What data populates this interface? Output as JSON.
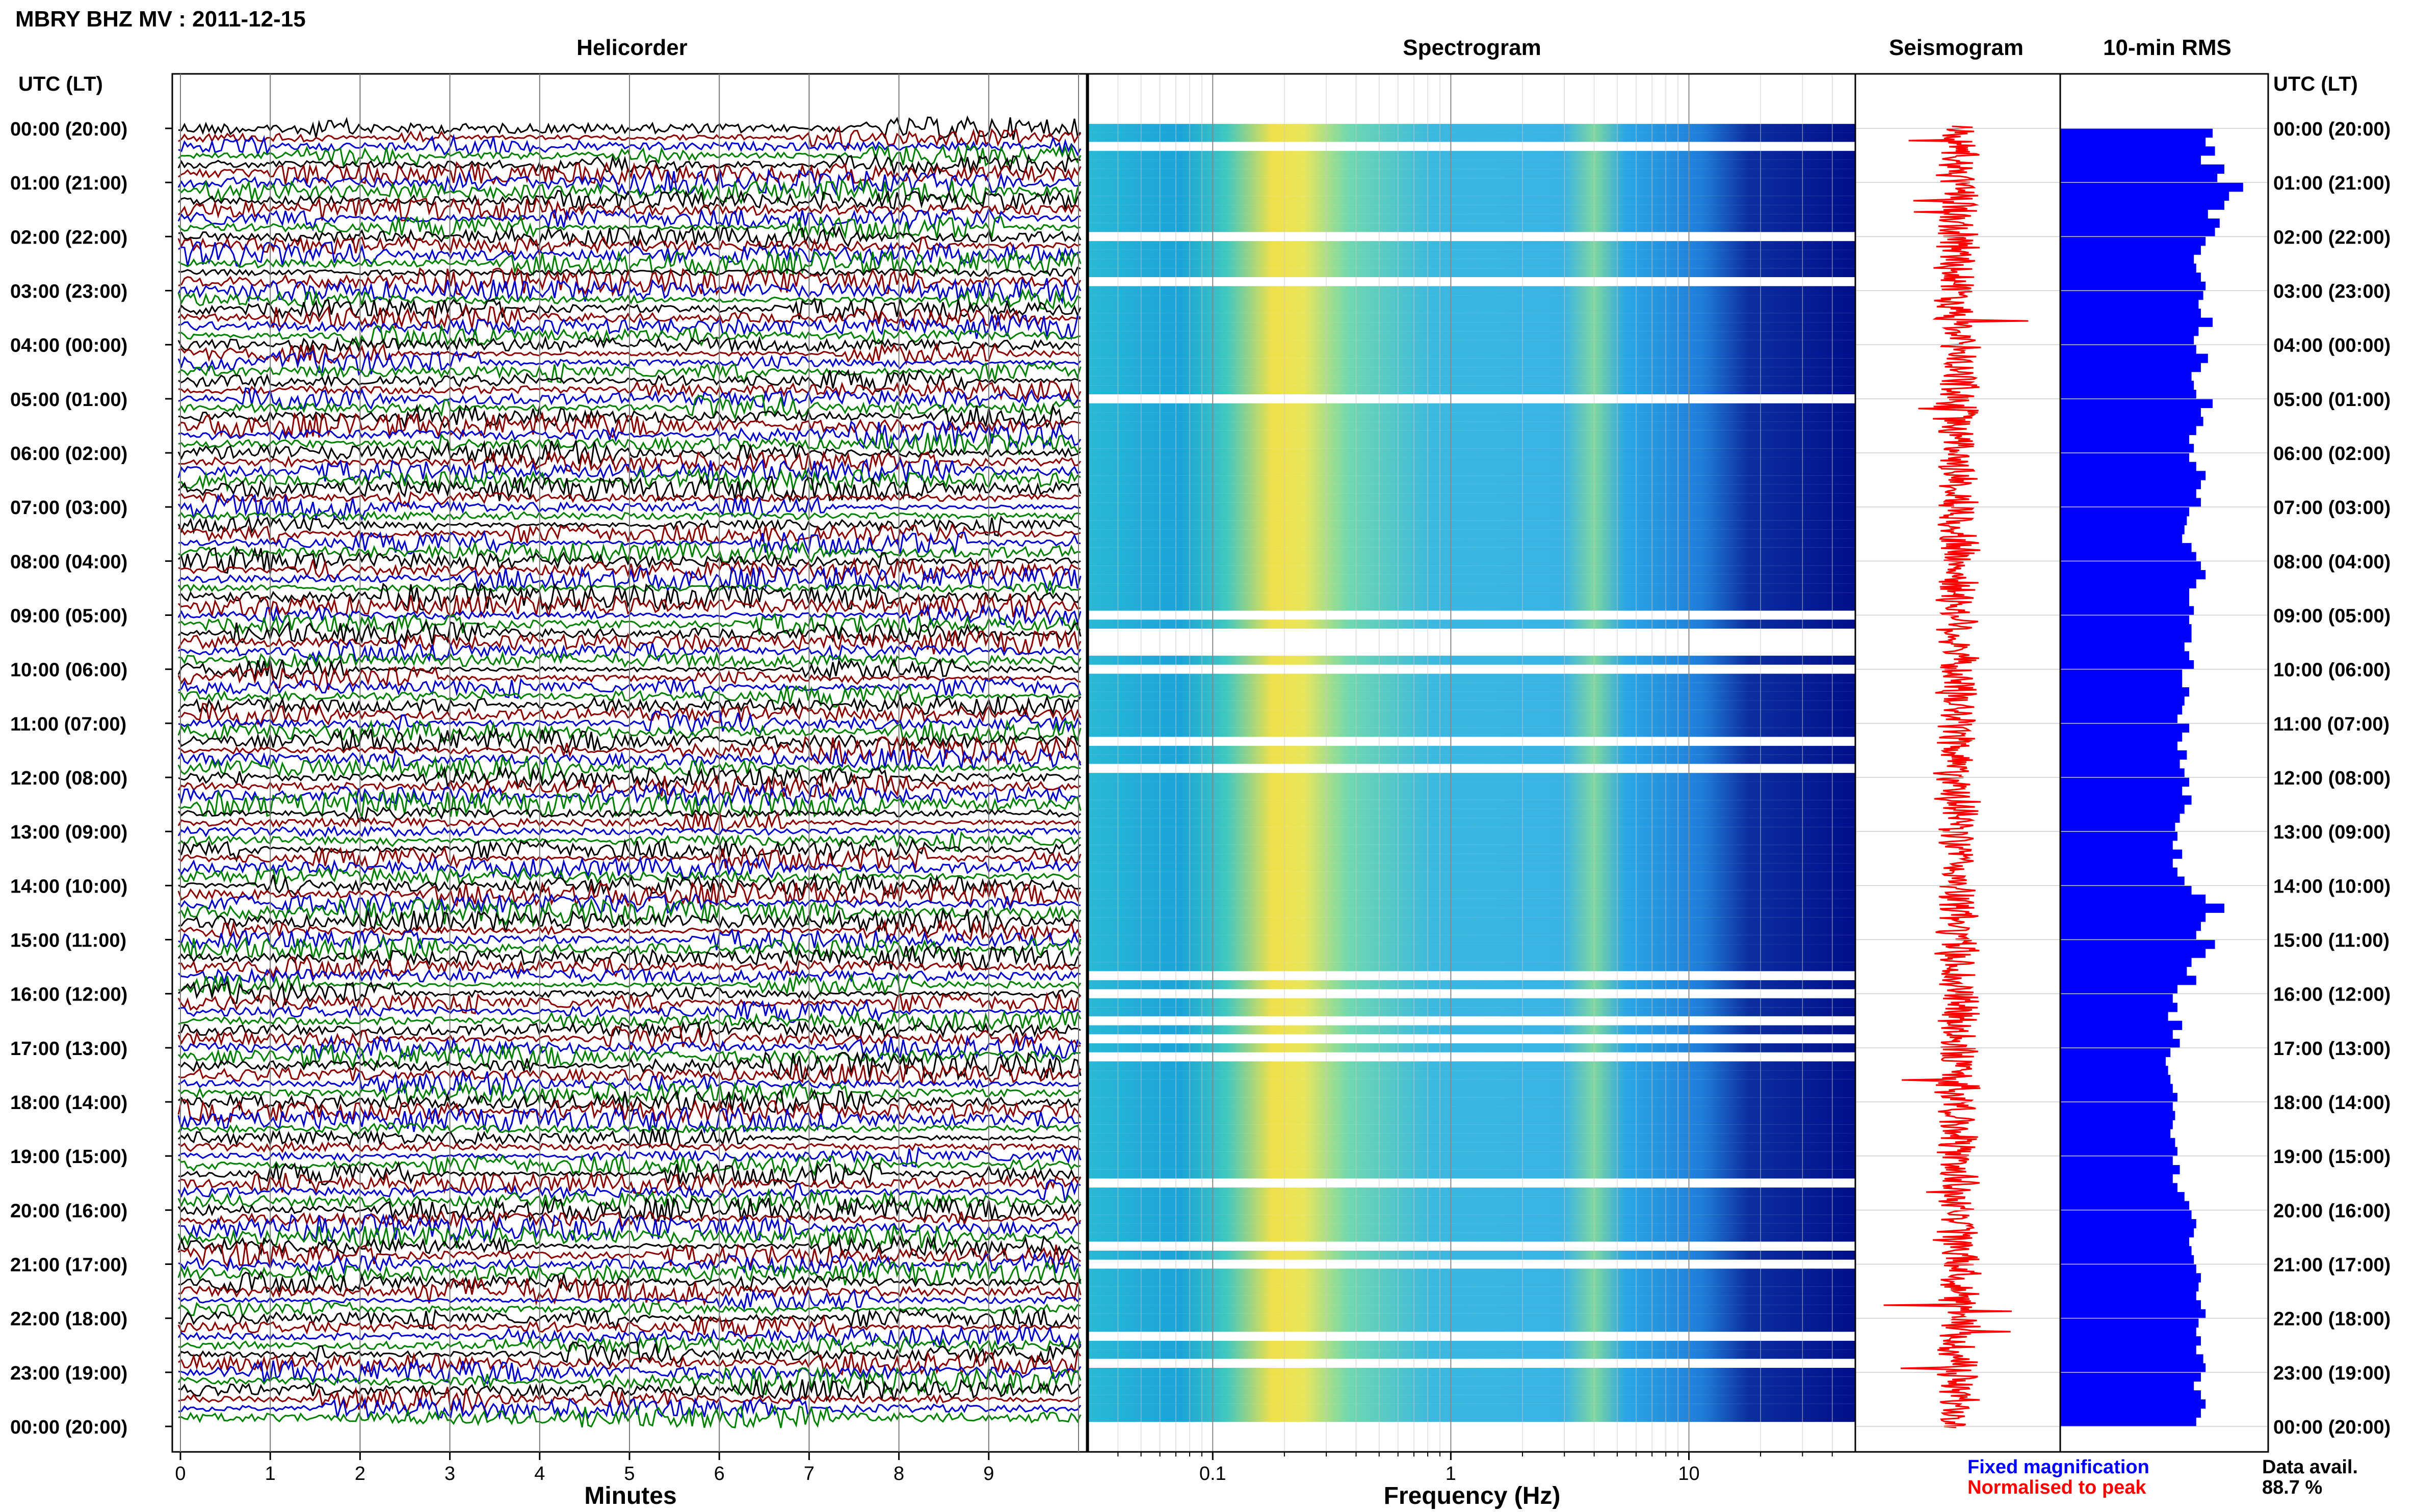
{
  "header": {
    "title": "MBRY BHZ MV : 2011-12-15",
    "utc_label": "UTC (LT)"
  },
  "panels": {
    "helicorder": "Helicorder",
    "spectrogram": "Spectrogram",
    "seismogram": "Seismogram",
    "rms": "10-min RMS"
  },
  "axes": {
    "minutes_label": "Minutes",
    "frequency_label": "Frequency (Hz)",
    "minute_ticks": [
      "0",
      "1",
      "2",
      "3",
      "4",
      "5",
      "6",
      "7",
      "8",
      "9"
    ],
    "frequency_ticks": [
      "0.1",
      "1",
      "10"
    ]
  },
  "time_labels": [
    "00:00 (20:00)",
    "01:00 (21:00)",
    "02:00 (22:00)",
    "03:00 (23:00)",
    "04:00 (00:00)",
    "05:00 (01:00)",
    "06:00 (02:00)",
    "07:00 (03:00)",
    "08:00 (04:00)",
    "09:00 (05:00)",
    "10:00 (06:00)",
    "11:00 (07:00)",
    "12:00 (08:00)",
    "13:00 (09:00)",
    "14:00 (10:00)",
    "15:00 (11:00)",
    "16:00 (12:00)",
    "17:00 (13:00)",
    "18:00 (14:00)",
    "19:00 (15:00)",
    "20:00 (16:00)",
    "21:00 (17:00)",
    "22:00 (18:00)",
    "23:00 (19:00)",
    "00:00 (20:00)"
  ],
  "legend": {
    "fixed": "Fixed magnification",
    "normalised": "Normalised to peak",
    "avail_label": "Data avail.",
    "avail_value": "88.7 %"
  },
  "colors": {
    "helicorder_traces": [
      "#000000",
      "#8b0000",
      "#0000cc",
      "#008000"
    ],
    "seismogram": "#ff0000",
    "rms": "#0000ff",
    "legend_fixed": "#0000ff",
    "legend_normalised": "#ff0000"
  },
  "chart_data": {
    "type": "heatmap",
    "x_frequency_range_hz": [
      0.03,
      50
    ],
    "x_minutes_range": [
      0,
      10
    ],
    "rows_per_hour": 6,
    "rms_bars": [
      0.65,
      0.62,
      0.66,
      0.6,
      0.7,
      0.67,
      0.78,
      0.72,
      0.7,
      0.63,
      0.68,
      0.66,
      0.62,
      0.6,
      0.57,
      0.58,
      0.6,
      0.62,
      0.61,
      0.59,
      0.6,
      0.65,
      0.59,
      0.57,
      0.58,
      0.63,
      0.6,
      0.56,
      0.57,
      0.58,
      0.65,
      0.6,
      0.61,
      0.58,
      0.55,
      0.57,
      0.55,
      0.58,
      0.62,
      0.6,
      0.58,
      0.6,
      0.55,
      0.54,
      0.53,
      0.52,
      0.56,
      0.58,
      0.6,
      0.62,
      0.58,
      0.55,
      0.55,
      0.57,
      0.55,
      0.56,
      0.56,
      0.53,
      0.55,
      0.57,
      0.52,
      0.52,
      0.55,
      0.53,
      0.52,
      0.5,
      0.55,
      0.52,
      0.5,
      0.54,
      0.51,
      0.53,
      0.55,
      0.52,
      0.56,
      0.53,
      0.51,
      0.49,
      0.5,
      0.48,
      0.52,
      0.48,
      0.5,
      0.53,
      0.56,
      0.62,
      0.7,
      0.62,
      0.6,
      0.58,
      0.66,
      0.62,
      0.56,
      0.54,
      0.58,
      0.5,
      0.48,
      0.5,
      0.46,
      0.52,
      0.48,
      0.51,
      0.47,
      0.45,
      0.46,
      0.47,
      0.48,
      0.5,
      0.48,
      0.49,
      0.48,
      0.47,
      0.49,
      0.5,
      0.48,
      0.51,
      0.48,
      0.5,
      0.53,
      0.55,
      0.56,
      0.58,
      0.57,
      0.55,
      0.56,
      0.57,
      0.58,
      0.6,
      0.59,
      0.58,
      0.6,
      0.62,
      0.59,
      0.58,
      0.6,
      0.58,
      0.61,
      0.62,
      0.6,
      0.57,
      0.6,
      0.62,
      0.6,
      0.58
    ]
  }
}
